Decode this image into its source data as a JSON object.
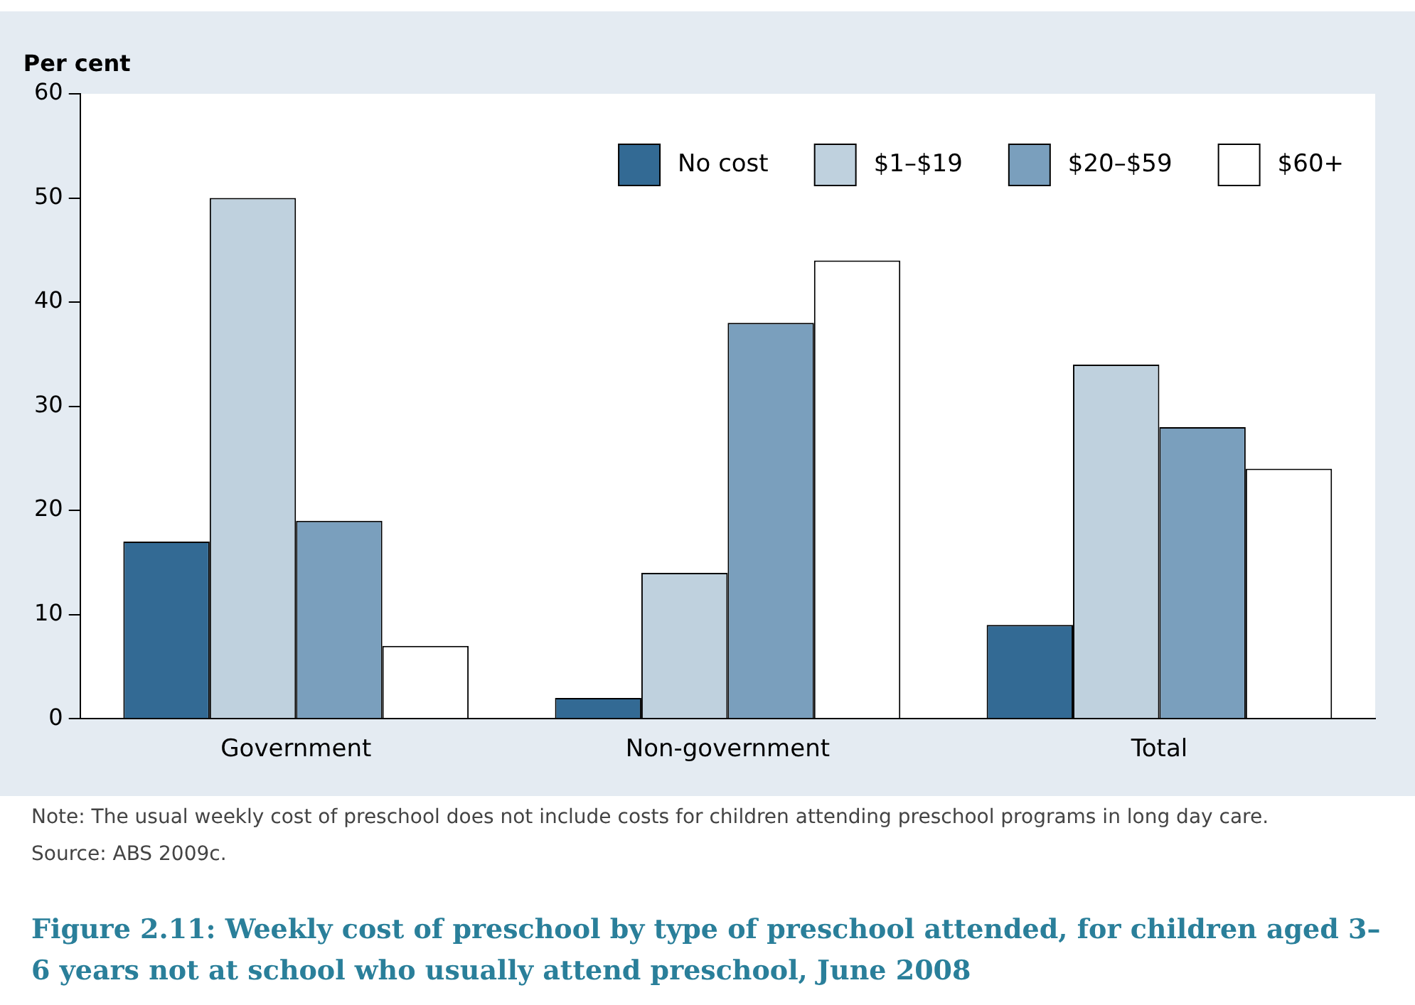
{
  "chart_data": {
    "type": "bar",
    "title": "Figure 2.11: Weekly cost of preschool by type of preschool attended, for children aged 3–6 years not at school who usually attend preschool, June 2008",
    "ylabel": "Per cent",
    "categories": [
      "Government",
      "Non-government",
      "Total"
    ],
    "series": [
      {
        "name": "No cost",
        "color": "#336a94",
        "values": [
          17,
          2,
          9
        ]
      },
      {
        "name": "$1–$19",
        "color": "#bfd1de",
        "values": [
          50,
          14,
          34
        ]
      },
      {
        "name": "$20–$59",
        "color": "#7a9fbd",
        "values": [
          19,
          38,
          28
        ]
      },
      {
        "name": "$60+",
        "color": "#ffffff",
        "values": [
          7,
          44,
          24
        ]
      }
    ],
    "ylim": [
      0,
      60
    ],
    "yticks": [
      0,
      10,
      20,
      30,
      40,
      50,
      60
    ],
    "grid": false,
    "legend": "top right",
    "annotations": [
      "Note: The usual weekly cost of preschool does not include costs for children attending preschool programs in long day care.",
      "Source: ABS 2009c."
    ]
  }
}
